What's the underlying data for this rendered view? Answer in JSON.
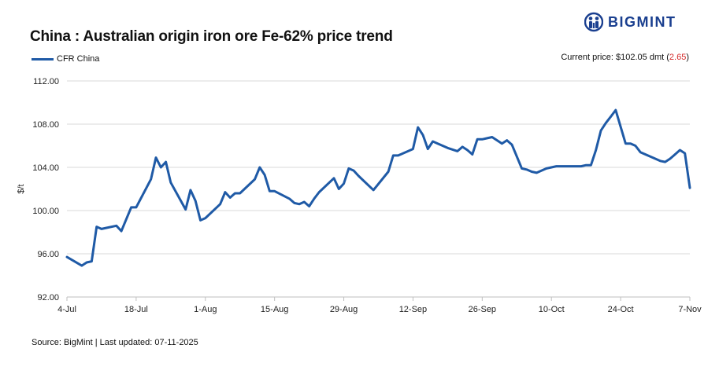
{
  "brand": {
    "name": "BIGMINT",
    "logo_icon": "bigmint-logo-icon",
    "color": "#1a3f8f"
  },
  "header": {
    "title": "China : Australian origin iron ore Fe-62% price trend",
    "current_price_label": "Current price: $102.05 dmt (",
    "current_price_change": "2.65",
    "current_price_suffix": ")"
  },
  "footer": {
    "source": "Source: BigMint | Last updated: 07-11-2025"
  },
  "colors": {
    "line": "#1f5aa6",
    "grid": "#d9d9d9",
    "change": "#d42a2a"
  },
  "chart_data": {
    "type": "line",
    "title": "China : Australian origin iron ore Fe-62% price trend",
    "xlabel": "",
    "ylabel": "$/t",
    "ylim": [
      92,
      112
    ],
    "xlim": [
      0,
      126
    ],
    "yticks": [
      92,
      96,
      100,
      104,
      108,
      112
    ],
    "ytick_labels": [
      "92.00",
      "96.00",
      "100.00",
      "104.00",
      "108.00",
      "112.00"
    ],
    "xticks": [
      0,
      14,
      28,
      42,
      56,
      70,
      84,
      98,
      112,
      126
    ],
    "xtick_labels": [
      "4-Jul",
      "18-Jul",
      "1-Aug",
      "15-Aug",
      "29-Aug",
      "12-Sep",
      "26-Sep",
      "10-Oct",
      "24-Oct",
      "7-Nov"
    ],
    "grid": "horizontal",
    "legend": "top-left",
    "series": [
      {
        "name": "CFR China",
        "x": [
          0,
          3,
          4,
          5,
          6,
          7,
          8,
          10,
          11,
          13,
          14,
          17,
          18,
          19,
          20,
          21,
          24,
          25,
          26,
          27,
          28,
          31,
          32,
          33,
          34,
          35,
          38,
          39,
          40,
          41,
          42,
          45,
          46,
          47,
          48,
          49,
          50,
          51,
          54,
          55,
          56,
          57,
          58,
          59,
          62,
          65,
          66,
          67,
          68,
          69,
          70,
          71,
          72,
          73,
          74,
          75,
          76,
          77,
          79,
          80,
          81,
          82,
          83,
          84,
          85,
          86,
          88,
          89,
          90,
          92,
          93,
          94,
          95,
          97,
          99,
          101,
          103,
          104,
          105,
          106,
          107,
          108,
          109,
          110,
          111,
          113,
          114,
          115,
          116,
          117,
          119,
          120,
          121,
          122,
          123,
          124,
          125,
          126
        ],
        "values": [
          95.7,
          94.9,
          95.2,
          95.3,
          98.5,
          98.3,
          98.4,
          98.6,
          98.1,
          100.3,
          100.3,
          102.9,
          104.9,
          104.0,
          104.5,
          102.6,
          100.1,
          101.9,
          100.9,
          99.1,
          99.3,
          100.6,
          101.7,
          101.2,
          101.6,
          101.6,
          102.9,
          104.0,
          103.3,
          101.8,
          101.8,
          101.1,
          100.7,
          100.6,
          100.8,
          100.4,
          101.1,
          101.7,
          103.0,
          102.0,
          102.5,
          103.9,
          103.7,
          103.2,
          101.9,
          103.6,
          105.1,
          105.1,
          105.3,
          105.5,
          105.7,
          107.7,
          107.0,
          105.7,
          106.4,
          106.2,
          106.0,
          105.8,
          105.5,
          105.9,
          105.6,
          105.2,
          106.6,
          106.6,
          106.7,
          106.8,
          106.2,
          106.5,
          106.1,
          103.9,
          103.8,
          103.6,
          103.5,
          103.9,
          104.1,
          104.1,
          104.1,
          104.1,
          104.2,
          104.2,
          105.6,
          107.4,
          108.1,
          108.7,
          109.3,
          106.2,
          106.2,
          106.0,
          105.4,
          105.2,
          104.8,
          104.6,
          104.5,
          104.8,
          105.2,
          105.6,
          105.3,
          102.1
        ]
      }
    ]
  }
}
